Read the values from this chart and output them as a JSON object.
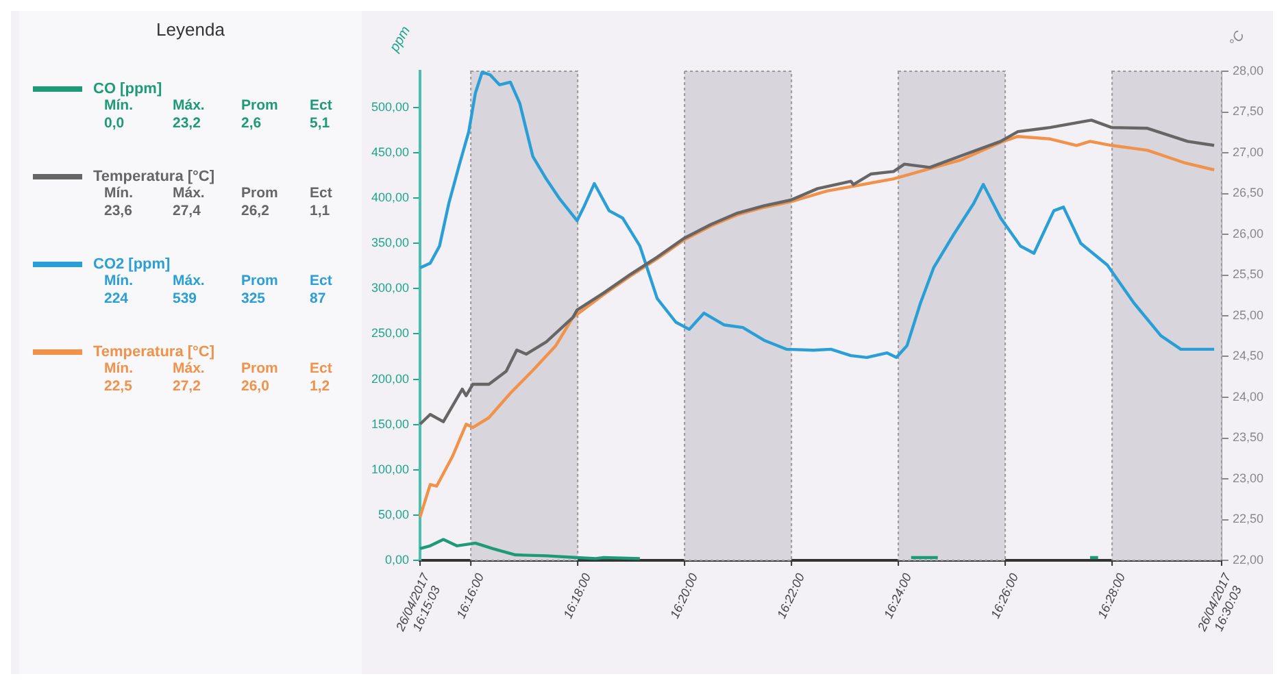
{
  "chart_data": {
    "type": "line",
    "legend_title": "Leyenda",
    "legend": "left",
    "marker": "none",
    "ylabel": "ppm",
    "y2label": "°C",
    "xlim": [
      16.25083,
      16.50083
    ],
    "xticks": [
      {
        "value": 16.25083,
        "label": "26/04/2017\n16:15:03"
      },
      {
        "value": 16.26667,
        "label": "16:16:00"
      },
      {
        "value": 16.3,
        "label": "16:18:00"
      },
      {
        "value": 16.33333,
        "label": "16:20:00"
      },
      {
        "value": 16.36667,
        "label": "16:22:00"
      },
      {
        "value": 16.4,
        "label": "16:24:00"
      },
      {
        "value": 16.43333,
        "label": "16:26:00"
      },
      {
        "value": 16.46667,
        "label": "16:28:00"
      },
      {
        "value": 16.50083,
        "label": "26/04/2017\n16:30:03"
      }
    ],
    "ylim": [
      0,
      540
    ],
    "yticks": [
      {
        "value": 0,
        "label": "0,00"
      },
      {
        "value": 50,
        "label": "50,00"
      },
      {
        "value": 100,
        "label": "100,00"
      },
      {
        "value": 150,
        "label": "150,00"
      },
      {
        "value": 200,
        "label": "200,00"
      },
      {
        "value": 250,
        "label": "250,00"
      },
      {
        "value": 300,
        "label": "300,00"
      },
      {
        "value": 350,
        "label": "350,00"
      },
      {
        "value": 400,
        "label": "400,00"
      },
      {
        "value": 450,
        "label": "450,00"
      },
      {
        "value": 500,
        "label": "500,00"
      }
    ],
    "y2lim": [
      22,
      28
    ],
    "y2ticks": [
      {
        "value": 22,
        "label": "22,00"
      },
      {
        "value": 22.5,
        "label": "22,50"
      },
      {
        "value": 23,
        "label": "23,00"
      },
      {
        "value": 23.5,
        "label": "23,50"
      },
      {
        "value": 24,
        "label": "24,00"
      },
      {
        "value": 24.5,
        "label": "24,50"
      },
      {
        "value": 25,
        "label": "25,00"
      },
      {
        "value": 25.5,
        "label": "25,50"
      },
      {
        "value": 26,
        "label": "26,00"
      },
      {
        "value": 26.5,
        "label": "26,50"
      },
      {
        "value": 27,
        "label": "27,00"
      },
      {
        "value": 27.5,
        "label": "27,50"
      },
      {
        "value": 28,
        "label": "28,00"
      }
    ],
    "bands": [
      {
        "axis": "x",
        "from": 16.26667,
        "to": 16.3,
        "color": "#d9d5dc"
      },
      {
        "axis": "x",
        "from": 16.33333,
        "to": 16.36667,
        "color": "#d9d5dc"
      },
      {
        "axis": "x",
        "from": 16.4,
        "to": 16.43333,
        "color": "#d9d5dc"
      },
      {
        "axis": "x",
        "from": 16.46667,
        "to": 16.50083,
        "color": "#d9d5dc"
      }
    ],
    "annotations": [
      "Mín.",
      "Máx.",
      "Prom",
      "Ect",
      "0,0",
      "23,2",
      "2,6",
      "5,1",
      "Mín.",
      "Máx.",
      "Prom",
      "Ect",
      "23,6",
      "27,4",
      "26,2",
      "1,1",
      "Mín.",
      "Máx.",
      "Prom",
      "Ect",
      "224",
      "539",
      "325",
      "87",
      "Mín.",
      "Máx.",
      "Prom",
      "Ect",
      "22,5",
      "27,2",
      "26,0",
      "1,2"
    ],
    "series": [
      {
        "name": "CO [ppm]",
        "color": "#1f9a78",
        "x": [
          16.25083,
          16.254,
          16.2581,
          16.2623,
          16.2681,
          16.2735,
          16.2806,
          16.2902,
          16.2998,
          16.3056,
          16.3081,
          16.3194,
          16.32,
          16.4035,
          16.404,
          16.4123,
          16.4128,
          16.4593,
          16.4598,
          16.4623
        ],
        "values": [
          13,
          16,
          23,
          16,
          19,
          13,
          6,
          5,
          3,
          2,
          3,
          2,
          null,
          null,
          3,
          3,
          null,
          null,
          3,
          3
        ]
      },
      {
        "name": "Temperatura [°C]",
        "color": "#666666",
        "axis": "y2",
        "x": [
          16.25083,
          16.254,
          16.2581,
          16.264,
          16.2652,
          16.2673,
          16.2723,
          16.2777,
          16.281,
          16.284,
          16.2902,
          16.2985,
          16.2998,
          16.3081,
          16.3165,
          16.3248,
          16.3331,
          16.3415,
          16.3498,
          16.3581,
          16.3665,
          16.3748,
          16.3852,
          16.386,
          16.3915,
          16.3985,
          16.4019,
          16.4098,
          16.4194,
          16.4319,
          16.4373,
          16.4473,
          16.4602,
          16.4665,
          16.4777,
          16.4902,
          16.4985
        ],
        "values": [
          23.67,
          23.79,
          23.7,
          24.1,
          24.02,
          24.16,
          24.16,
          24.32,
          24.58,
          24.53,
          24.68,
          24.98,
          25.07,
          25.28,
          25.51,
          25.72,
          25.95,
          26.12,
          26.26,
          26.35,
          26.42,
          26.56,
          26.65,
          26.61,
          26.74,
          26.77,
          26.86,
          26.82,
          26.96,
          27.14,
          27.26,
          27.31,
          27.4,
          27.31,
          27.3,
          27.14,
          27.09
        ]
      },
      {
        "name": "CO2 [ppm]",
        "color": "#2a9fd6",
        "x": [
          16.25083,
          16.254,
          16.2569,
          16.2598,
          16.2631,
          16.266,
          16.2681,
          16.2702,
          16.2727,
          16.2756,
          16.279,
          16.2819,
          16.286,
          16.2902,
          16.2944,
          16.2998,
          16.3019,
          16.3052,
          16.3098,
          16.314,
          16.3194,
          16.3248,
          16.3306,
          16.3348,
          16.3394,
          16.3456,
          16.3515,
          16.3581,
          16.3652,
          16.3735,
          16.379,
          16.3852,
          16.3902,
          16.3965,
          16.3994,
          16.4027,
          16.4069,
          16.411,
          16.4173,
          16.4235,
          16.4265,
          16.4319,
          16.4381,
          16.4423,
          16.4485,
          16.4515,
          16.4569,
          16.4652,
          16.4735,
          16.4819,
          16.4881,
          16.4985
        ],
        "values": [
          323,
          328,
          347,
          394,
          437,
          473,
          516,
          539,
          536,
          525,
          528,
          505,
          446,
          421,
          399,
          375,
          390,
          416,
          386,
          378,
          347,
          289,
          263,
          255,
          273,
          260,
          257,
          243,
          233,
          232,
          233,
          226,
          224,
          229,
          224,
          237,
          284,
          323,
          360,
          394,
          415,
          378,
          347,
          339,
          386,
          390,
          350,
          326,
          284,
          248,
          233,
          233
        ]
      },
      {
        "name": "Temperatura [°C]",
        "color": "#f0924a",
        "axis": "y2",
        "x": [
          16.25083,
          16.254,
          16.256,
          16.261,
          16.2652,
          16.2673,
          16.2723,
          16.279,
          16.286,
          16.2931,
          16.2985,
          16.3081,
          16.3165,
          16.3248,
          16.3331,
          16.3415,
          16.3498,
          16.3581,
          16.3665,
          16.3777,
          16.3985,
          16.4194,
          16.4327,
          16.4373,
          16.4473,
          16.4556,
          16.4598,
          16.4665,
          16.4777,
          16.489,
          16.4985
        ],
        "values": [
          22.53,
          22.93,
          22.91,
          23.28,
          23.67,
          23.63,
          23.75,
          24.05,
          24.33,
          24.63,
          24.98,
          25.26,
          25.49,
          25.7,
          25.93,
          26.1,
          26.24,
          26.33,
          26.4,
          26.53,
          26.68,
          26.91,
          27.14,
          27.2,
          27.17,
          27.09,
          27.14,
          27.09,
          27.03,
          26.88,
          26.79
        ]
      }
    ]
  }
}
